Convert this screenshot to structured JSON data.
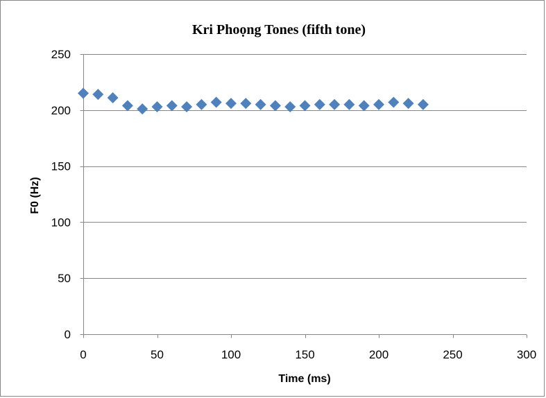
{
  "chart_data": {
    "type": "scatter",
    "title": "Kri Phoọng Tones (fifth tone)",
    "xlabel": "Time (ms)",
    "ylabel": "F0 (Hz)",
    "xlim": [
      0,
      300
    ],
    "ylim": [
      0,
      250
    ],
    "x_ticks": [
      0,
      50,
      100,
      150,
      200,
      250,
      300
    ],
    "y_ticks": [
      0,
      50,
      100,
      150,
      200,
      250
    ],
    "grid": "horizontal",
    "legend": "none",
    "marker": "diamond",
    "series": [
      {
        "color": "#4F81BD",
        "points": [
          [
            0,
            215
          ],
          [
            10,
            214
          ],
          [
            20,
            211
          ],
          [
            30,
            204
          ],
          [
            40,
            201
          ],
          [
            50,
            203
          ],
          [
            60,
            204
          ],
          [
            70,
            203
          ],
          [
            80,
            205
          ],
          [
            90,
            207
          ],
          [
            100,
            206
          ],
          [
            110,
            206
          ],
          [
            120,
            205
          ],
          [
            130,
            204
          ],
          [
            140,
            203
          ],
          [
            150,
            204
          ],
          [
            160,
            205
          ],
          [
            170,
            205
          ],
          [
            180,
            205
          ],
          [
            190,
            204
          ],
          [
            200,
            205
          ],
          [
            210,
            207
          ],
          [
            220,
            206
          ],
          [
            230,
            205
          ]
        ]
      }
    ]
  },
  "colors": {
    "frame": "#868686",
    "gridline": "#868686",
    "marker": "#4F81BD"
  }
}
